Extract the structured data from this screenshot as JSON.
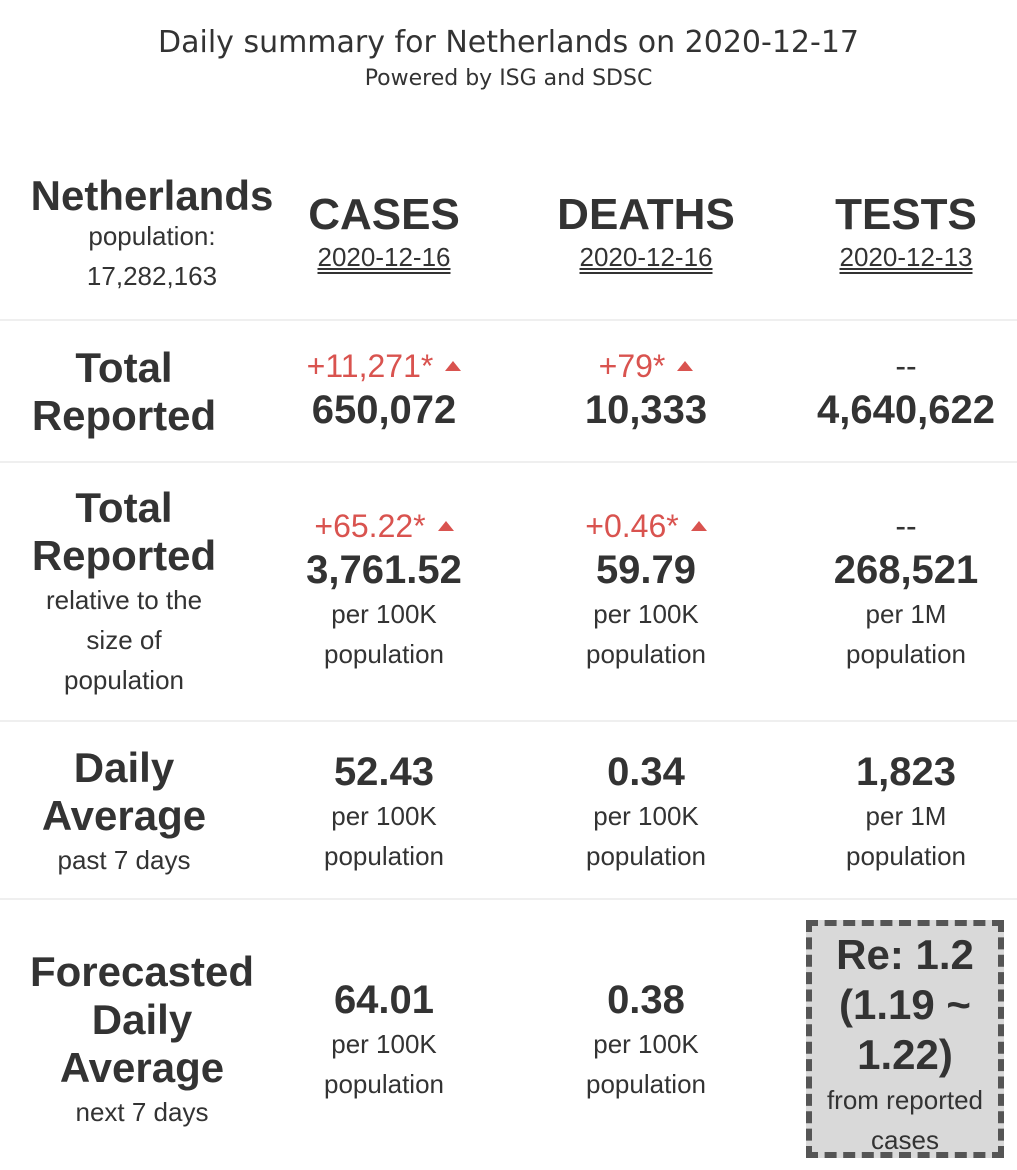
{
  "header": {
    "title": "Daily summary for Netherlands on 2020-12-17",
    "subtitle": "Powered by ISG and SDSC"
  },
  "region": {
    "name": "Netherlands",
    "population_label": "population:",
    "population": "17,282,163"
  },
  "columns": {
    "cases": {
      "label": "CASES",
      "date": "2020-12-16"
    },
    "deaths": {
      "label": "DEATHS",
      "date": "2020-12-16"
    },
    "tests": {
      "label": "TESTS",
      "date": "2020-12-13"
    }
  },
  "rows": {
    "total_reported": {
      "label_line1": "Total",
      "label_line2": "Reported",
      "cases": {
        "delta": "+11,271*",
        "value": "650,072"
      },
      "deaths": {
        "delta": "+79*",
        "value": "10,333"
      },
      "tests": {
        "delta": "--",
        "value": "4,640,622"
      }
    },
    "relative": {
      "label_line1": "Total",
      "label_line2": "Reported",
      "sub_line1": "relative to the",
      "sub_line2": "size of",
      "sub_line3": "population",
      "cases": {
        "delta": "+65.22*",
        "value": "3,761.52",
        "unit1": "per 100K",
        "unit2": "population"
      },
      "deaths": {
        "delta": "+0.46*",
        "value": "59.79",
        "unit1": "per 100K",
        "unit2": "population"
      },
      "tests": {
        "delta": "--",
        "value": "268,521",
        "unit1": "per 1M",
        "unit2": "population"
      }
    },
    "daily_average": {
      "label_line1": "Daily",
      "label_line2": "Average",
      "sub": "past 7 days",
      "cases": {
        "value": "52.43",
        "unit1": "per 100K",
        "unit2": "population"
      },
      "deaths": {
        "value": "0.34",
        "unit1": "per 100K",
        "unit2": "population"
      },
      "tests": {
        "value": "1,823",
        "unit1": "per 1M",
        "unit2": "population"
      }
    },
    "forecast": {
      "label_line1": "Forecasted",
      "label_line2": "Daily",
      "label_line3": "Average",
      "sub": "next 7 days",
      "cases": {
        "value": "64.01",
        "unit1": "per 100K",
        "unit2": "population"
      },
      "deaths": {
        "value": "0.38",
        "unit1": "per 100K",
        "unit2": "population"
      },
      "re": {
        "line1": "Re: 1.2",
        "line2": "(1.19 ~",
        "line3": "1.22)",
        "sub1": "from reported",
        "sub2": "cases"
      }
    }
  },
  "colors": {
    "increase": "#d9534f",
    "text": "#333333",
    "re_box_bg": "#d9d9d9"
  }
}
